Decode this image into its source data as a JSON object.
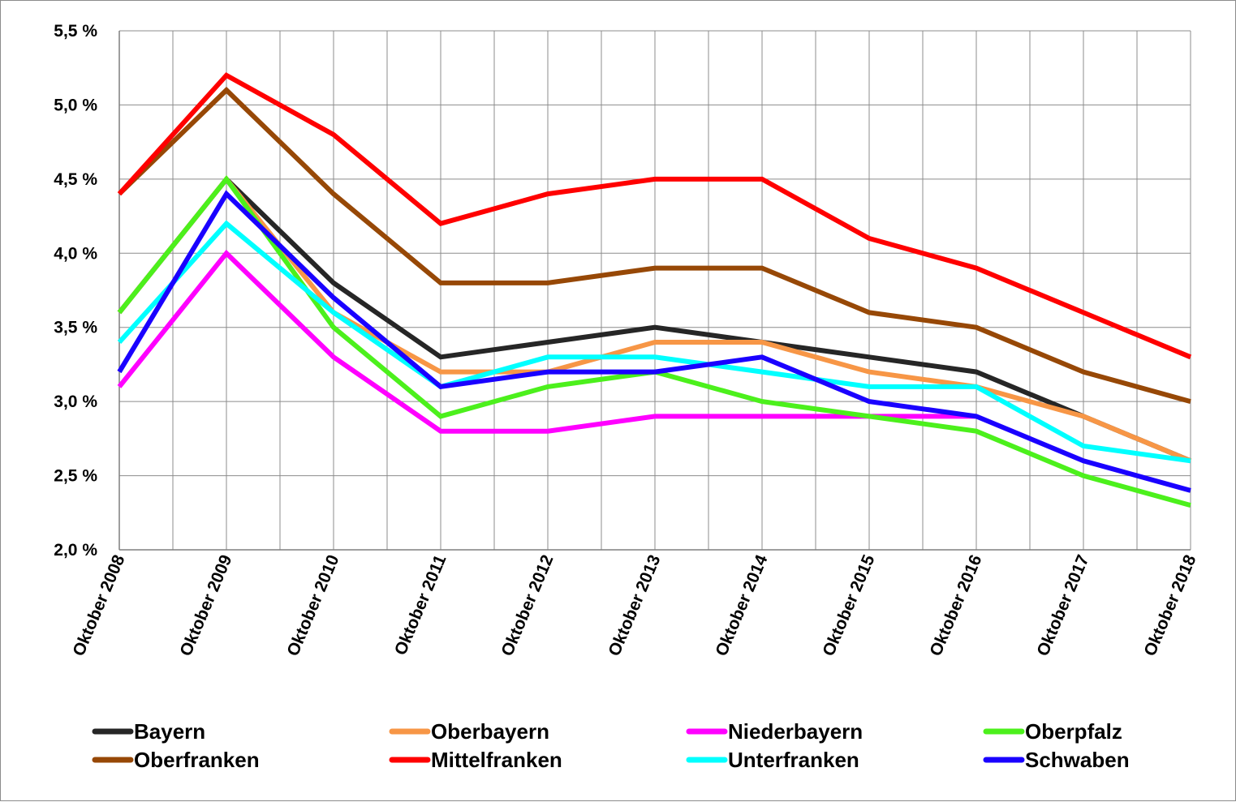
{
  "chart_data": {
    "type": "line",
    "title": "",
    "xlabel": "",
    "ylabel": "",
    "ylim": [
      2.0,
      5.5
    ],
    "y_ticks": [
      "2,0 %",
      "2,5 %",
      "3,0 %",
      "3,5 %",
      "4,0 %",
      "4,5 %",
      "5,0 %",
      "5,5 %"
    ],
    "y_tick_values": [
      2.0,
      2.5,
      3.0,
      3.5,
      4.0,
      4.5,
      5.0,
      5.5
    ],
    "grid": true,
    "legend_position": "bottom",
    "categories": [
      "Oktober 2008",
      "Oktober 2009",
      "Oktober 2010",
      "Oktober 2011",
      "Oktober 2012",
      "Oktober 2013",
      "Oktober 2014",
      "Oktober 2015",
      "Oktober 2016",
      "Oktober 2017",
      "Oktober 2018"
    ],
    "series": [
      {
        "name": "Bayern",
        "color": "#262626",
        "values": [
          3.6,
          4.5,
          3.8,
          3.3,
          3.4,
          3.5,
          3.4,
          3.3,
          3.2,
          2.9,
          2.6
        ]
      },
      {
        "name": "Oberbayern",
        "color": "#f79646",
        "values": [
          3.6,
          4.5,
          3.6,
          3.2,
          3.2,
          3.4,
          3.4,
          3.2,
          3.1,
          2.9,
          2.6
        ]
      },
      {
        "name": "Niederbayern",
        "color": "#ff00ff",
        "values": [
          3.1,
          4.0,
          3.3,
          2.8,
          2.8,
          2.9,
          2.9,
          2.9,
          2.9,
          null,
          null
        ]
      },
      {
        "name": "Oberpfalz",
        "color": "#4cf01c",
        "values": [
          3.6,
          4.5,
          3.5,
          2.9,
          3.1,
          3.2,
          3.0,
          2.9,
          2.8,
          2.5,
          2.3
        ]
      },
      {
        "name": "Oberfranken",
        "color": "#974806",
        "values": [
          4.4,
          5.1,
          4.4,
          3.8,
          3.8,
          3.9,
          3.9,
          3.6,
          3.5,
          3.2,
          3.0
        ]
      },
      {
        "name": "Mittelfranken",
        "color": "#ff0000",
        "values": [
          4.4,
          5.2,
          4.8,
          4.2,
          4.4,
          4.5,
          4.5,
          4.1,
          3.9,
          3.6,
          3.3
        ]
      },
      {
        "name": "Unterfranken",
        "color": "#00ffff",
        "values": [
          3.4,
          4.2,
          3.6,
          3.1,
          3.3,
          3.3,
          3.2,
          3.1,
          3.1,
          2.7,
          2.6
        ]
      },
      {
        "name": "Schwaben",
        "color": "#1a00ff",
        "values": [
          3.2,
          4.4,
          3.7,
          3.1,
          3.2,
          3.2,
          3.3,
          3.0,
          2.9,
          2.6,
          2.4
        ]
      }
    ]
  }
}
